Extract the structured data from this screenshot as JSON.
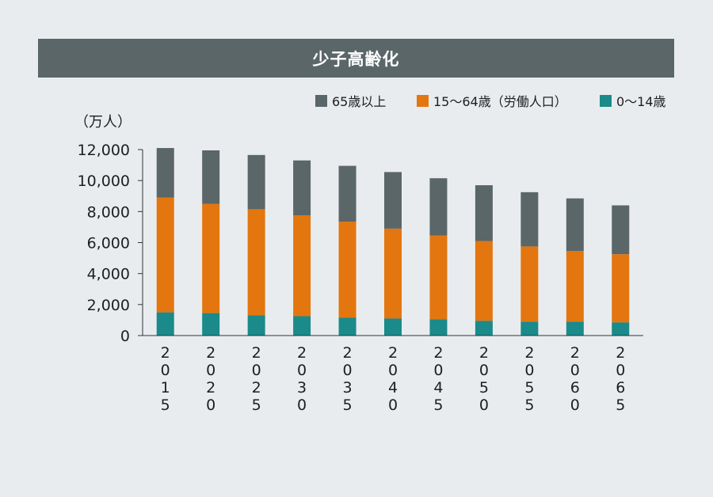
{
  "chart_data": {
    "type": "bar",
    "stacked": true,
    "title": "少子高齢化",
    "ylabel": "（万人）",
    "xlabel": "",
    "ylim": [
      0,
      12000
    ],
    "yticks": [
      "0",
      "2,000",
      "4,000",
      "6,000",
      "8,000",
      "10,000",
      "12,000"
    ],
    "categories": [
      "2015",
      "2020",
      "2025",
      "2030",
      "2035",
      "2040",
      "2045",
      "2050",
      "2055",
      "2060",
      "2065"
    ],
    "legend_position": "top-right",
    "series": [
      {
        "name": "0〜14歳",
        "color": "#1a8a8a",
        "values": [
          1500,
          1450,
          1300,
          1250,
          1150,
          1100,
          1050,
          950,
          900,
          900,
          850
        ]
      },
      {
        "name": "15〜64歳（労働人口）",
        "color": "#e3760f",
        "values": [
          7400,
          7050,
          6850,
          6500,
          6200,
          5800,
          5400,
          5150,
          4850,
          4550,
          4400
        ]
      },
      {
        "name": "65歳以上",
        "color": "#5a6668",
        "values": [
          3200,
          3450,
          3500,
          3550,
          3600,
          3650,
          3700,
          3600,
          3500,
          3400,
          3150
        ]
      }
    ],
    "legend_order": [
      "65歳以上",
      "15〜64歳（労働人口）",
      "0〜14歳"
    ]
  }
}
